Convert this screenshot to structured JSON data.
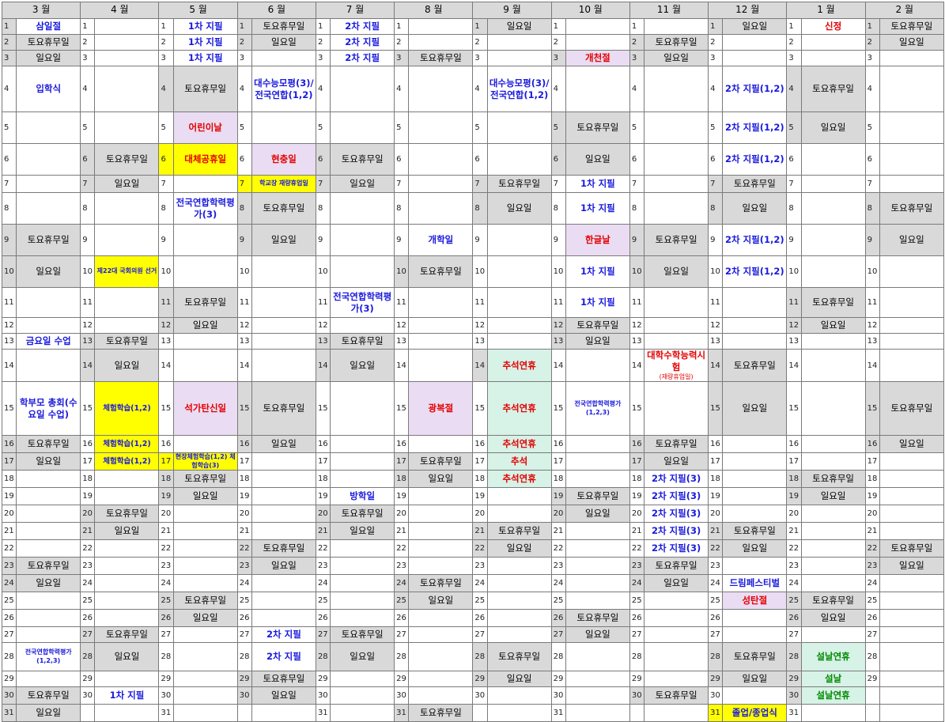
{
  "months": [
    "3 월",
    "4 월",
    "5 월",
    "6 월",
    "7 월",
    "8 월",
    "9 월",
    "10 월",
    "11 월",
    "12 월",
    "1 월",
    "2 월"
  ],
  "sat": "토요휴무일",
  "sun": "일요일",
  "events": {
    "e_0_1": "삼일절",
    "e_2_1": "1차 지필",
    "e_2_2": "1차 지필",
    "e_2_3": "1차 지필",
    "e_4_1": "2차 지필",
    "e_4_2": "2차 지필",
    "e_4_3": "2차 지필",
    "e_6_1": "일요일",
    "e_10_1": "신정",
    "e_7_3": "개천절",
    "e_0_4": "입학식",
    "e_3_4": "대수능모평(3)/전국연합(1,2)",
    "e_6_4": "대수능모평(3)/전국연합(1,2)",
    "e_9_4": "2차 지필(1,2)",
    "e_9_5": "2차 지필(1,2)",
    "e_9_6": "2차 지필(1,2)",
    "e_9_9": "2차 지필(1,2)",
    "e_9_10": "2차 지필(1,2)",
    "e_2_5": "어린이날",
    "e_2_6": "대체공휴일",
    "e_3_6": "현충일",
    "e_3_7": "학교장 재량휴업일",
    "e_7_7": "1차 지필",
    "e_7_8": "1차 지필",
    "e_7_10": "1차 지필",
    "e_7_11": "1차 지필",
    "e_2_8": "전국연합학력평가(3)",
    "e_5_9": "개학일",
    "e_7_9": "한글날",
    "e_1_10": "제22대 국회의원 선거",
    "e_4_11": "전국연합학력평가(3)",
    "e_0_13": "금요일 수업",
    "e_6_14": "추석연휴",
    "e_6_15": "추석연휴",
    "e_6_16": "추석연휴",
    "e_6_17": "추석",
    "e_6_18": "추석연휴",
    "e_8_14": "대학수학능력시험",
    "e_8_14_sub": "(재량휴업일)",
    "e_0_15": "학부모 총회(수요일 수업)",
    "e_1_15": "체험학습(1,2)",
    "e_1_16": "체험학습(1,2)",
    "e_1_17": "체험학습(1,2)",
    "e_2_15": "석가탄신일",
    "e_5_15": "광복절",
    "e_7_15": "전국연합학력평가(1,2,3)",
    "e_2_17": "현장체험학습(1,2) 체험학습(3)",
    "e_8_18": "2차 지필(3)",
    "e_8_19": "2차 지필(3)",
    "e_8_20": "2차 지필(3)",
    "e_8_21": "2차 지필(3)",
    "e_8_22": "2차 지필(3)",
    "e_4_19": "방학일",
    "e_9_24": "드림페스티벌",
    "e_9_25": "성탄절",
    "e_3_27": "2차 지필",
    "e_3_28": "2차 지필",
    "e_0_28": "전국연합학력평가(1,2,3)",
    "e_10_28": "설날연휴",
    "e_10_29": "설날",
    "e_10_30": "설날연휴",
    "e_1_30": "1차 지필",
    "e_9_31": "졸업/종업식"
  }
}
